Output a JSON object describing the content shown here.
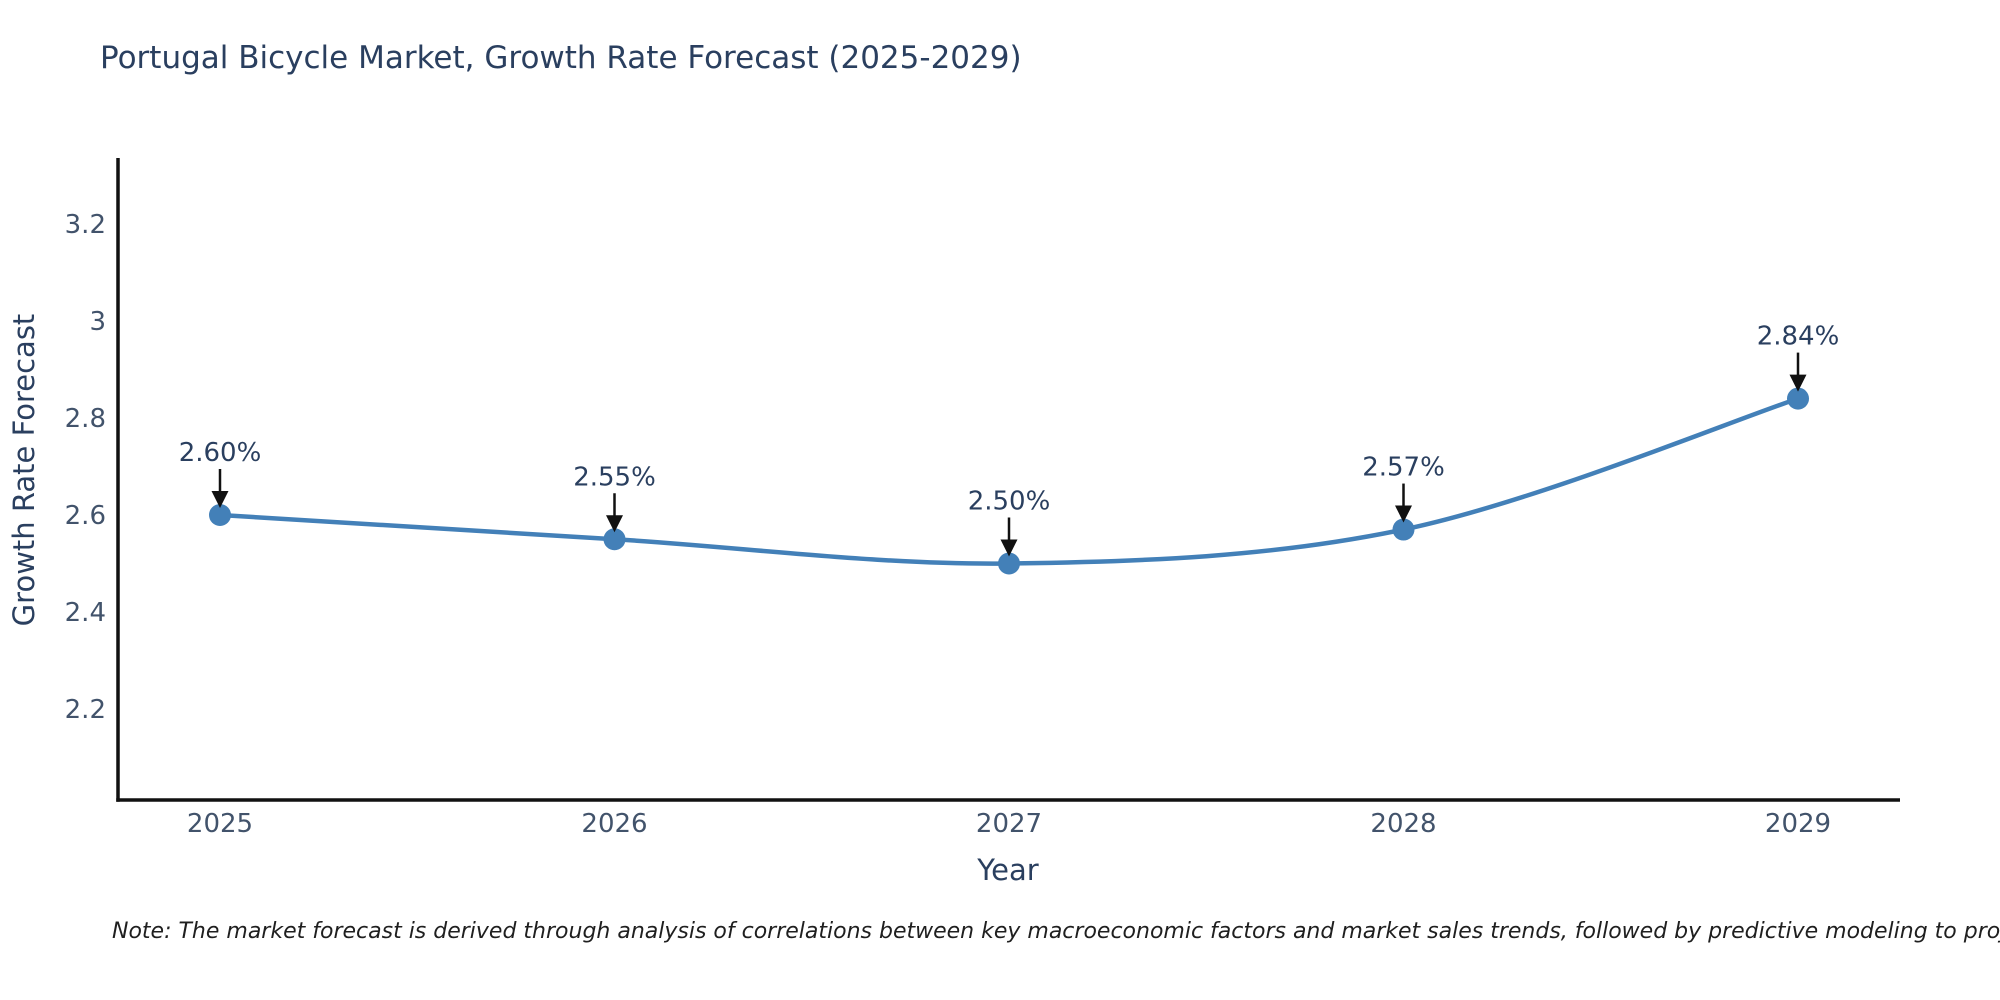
{
  "title": "Portugal Bicycle Market, Growth Rate Forecast (2025-2029)",
  "note": "Note: The market forecast is derived through analysis of correlations between key macroeconomic factors and market sales trends, followed by predictive modeling to project future sales",
  "chart_data": {
    "type": "line",
    "title": "Portugal Bicycle Market, Growth Rate Forecast (2025-2029)",
    "xlabel": "Year",
    "ylabel": "Growth Rate Forecast",
    "x": [
      2025,
      2026,
      2027,
      2028,
      2029
    ],
    "y": [
      2.6,
      2.55,
      2.5,
      2.57,
      2.84
    ],
    "point_labels": [
      "2.60%",
      "2.55%",
      "2.50%",
      "2.57%",
      "2.84%"
    ],
    "xtick_labels": [
      "2025",
      "2026",
      "2027",
      "2028",
      "2029"
    ],
    "ytick_values": [
      2.2,
      2.4,
      2.6,
      2.8,
      3.0,
      3.2
    ],
    "ytick_labels": [
      "2.2",
      "2.4",
      "2.6",
      "2.8",
      "3",
      "3.2"
    ],
    "ylim": [
      2.01,
      3.33
    ],
    "grid": false,
    "legend": "none",
    "line_shape": "spline",
    "line_color": "#4380b8",
    "marker_color": "#4380b8",
    "annotation_color": "#2a3f5f",
    "arrow_color": "#111111",
    "axis_color": "#111111"
  }
}
